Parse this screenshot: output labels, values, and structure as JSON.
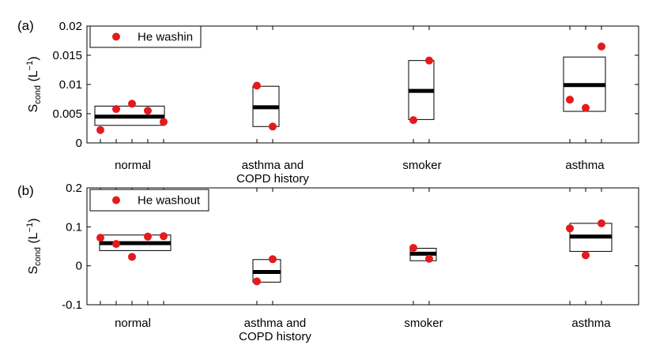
{
  "chart_data": [
    {
      "type": "box-scatter",
      "panel_label": "(a)",
      "ylabel_main": "S",
      "ylabel_sub": "cond",
      "ylabel_unit_open": " (L",
      "ylabel_unit_exp": "−1",
      "ylabel_unit_close": ")",
      "ylim": [
        0,
        0.02
      ],
      "yticks": [
        {
          "value": 0,
          "label": "0"
        },
        {
          "value": 0.005,
          "label": "0.005"
        },
        {
          "value": 0.01,
          "label": "0.01"
        },
        {
          "value": 0.015,
          "label": "0.015"
        },
        {
          "value": 0.02,
          "label": "0.02"
        }
      ],
      "legend": {
        "label": "He washin",
        "position": "top-left"
      },
      "groups": [
        {
          "name_lines": [
            "normal"
          ],
          "points": [
            0.0022,
            0.0058,
            0.0067,
            0.0055,
            0.0036
          ],
          "box": [
            0.003,
            0.0063
          ],
          "median": 0.0045
        },
        {
          "name_lines": [
            "asthma and",
            "COPD history"
          ],
          "points": [
            0.0098,
            0.0028
          ],
          "box": [
            0.0028,
            0.0097
          ],
          "median": 0.0061
        },
        {
          "name_lines": [
            "smoker"
          ],
          "points": [
            0.0039,
            0.0141
          ],
          "box": [
            0.004,
            0.0141
          ],
          "median": 0.0089
        },
        {
          "name_lines": [
            "asthma"
          ],
          "points": [
            0.0074,
            0.006,
            0.0165
          ],
          "box": [
            0.0054,
            0.0147
          ],
          "median": 0.0099
        }
      ]
    },
    {
      "type": "box-scatter",
      "panel_label": "(b)",
      "ylabel_main": "S",
      "ylabel_sub": "cond",
      "ylabel_unit_open": " (L",
      "ylabel_unit_exp": "−1",
      "ylabel_unit_close": ")",
      "ylim": [
        -0.1,
        0.2
      ],
      "yticks": [
        {
          "value": -0.1,
          "label": "-0.1"
        },
        {
          "value": 0,
          "label": "0"
        },
        {
          "value": 0.1,
          "label": "0.1"
        },
        {
          "value": 0.2,
          "label": "0.2"
        }
      ],
      "legend": {
        "label": "He washout",
        "position": "top-left"
      },
      "groups": [
        {
          "name_lines": [
            "normal"
          ],
          "points": [
            0.072,
            0.056,
            0.023,
            0.075,
            0.076
          ],
          "box": [
            0.039,
            0.079
          ],
          "median": 0.058
        },
        {
          "name_lines": [
            "asthma and",
            "COPD history"
          ],
          "points": [
            -0.04,
            0.017
          ],
          "box": [
            -0.042,
            0.016
          ],
          "median": -0.016
        },
        {
          "name_lines": [
            "smoker"
          ],
          "points": [
            0.046,
            0.018
          ],
          "box": [
            0.013,
            0.045
          ],
          "median": 0.031
        },
        {
          "name_lines": [
            "asthma"
          ],
          "points": [
            0.096,
            0.027,
            0.109
          ],
          "box": [
            0.037,
            0.109
          ],
          "median": 0.075
        }
      ]
    }
  ],
  "colors": {
    "point": "#e41a1c",
    "median": "#000000",
    "box": "#000000"
  }
}
